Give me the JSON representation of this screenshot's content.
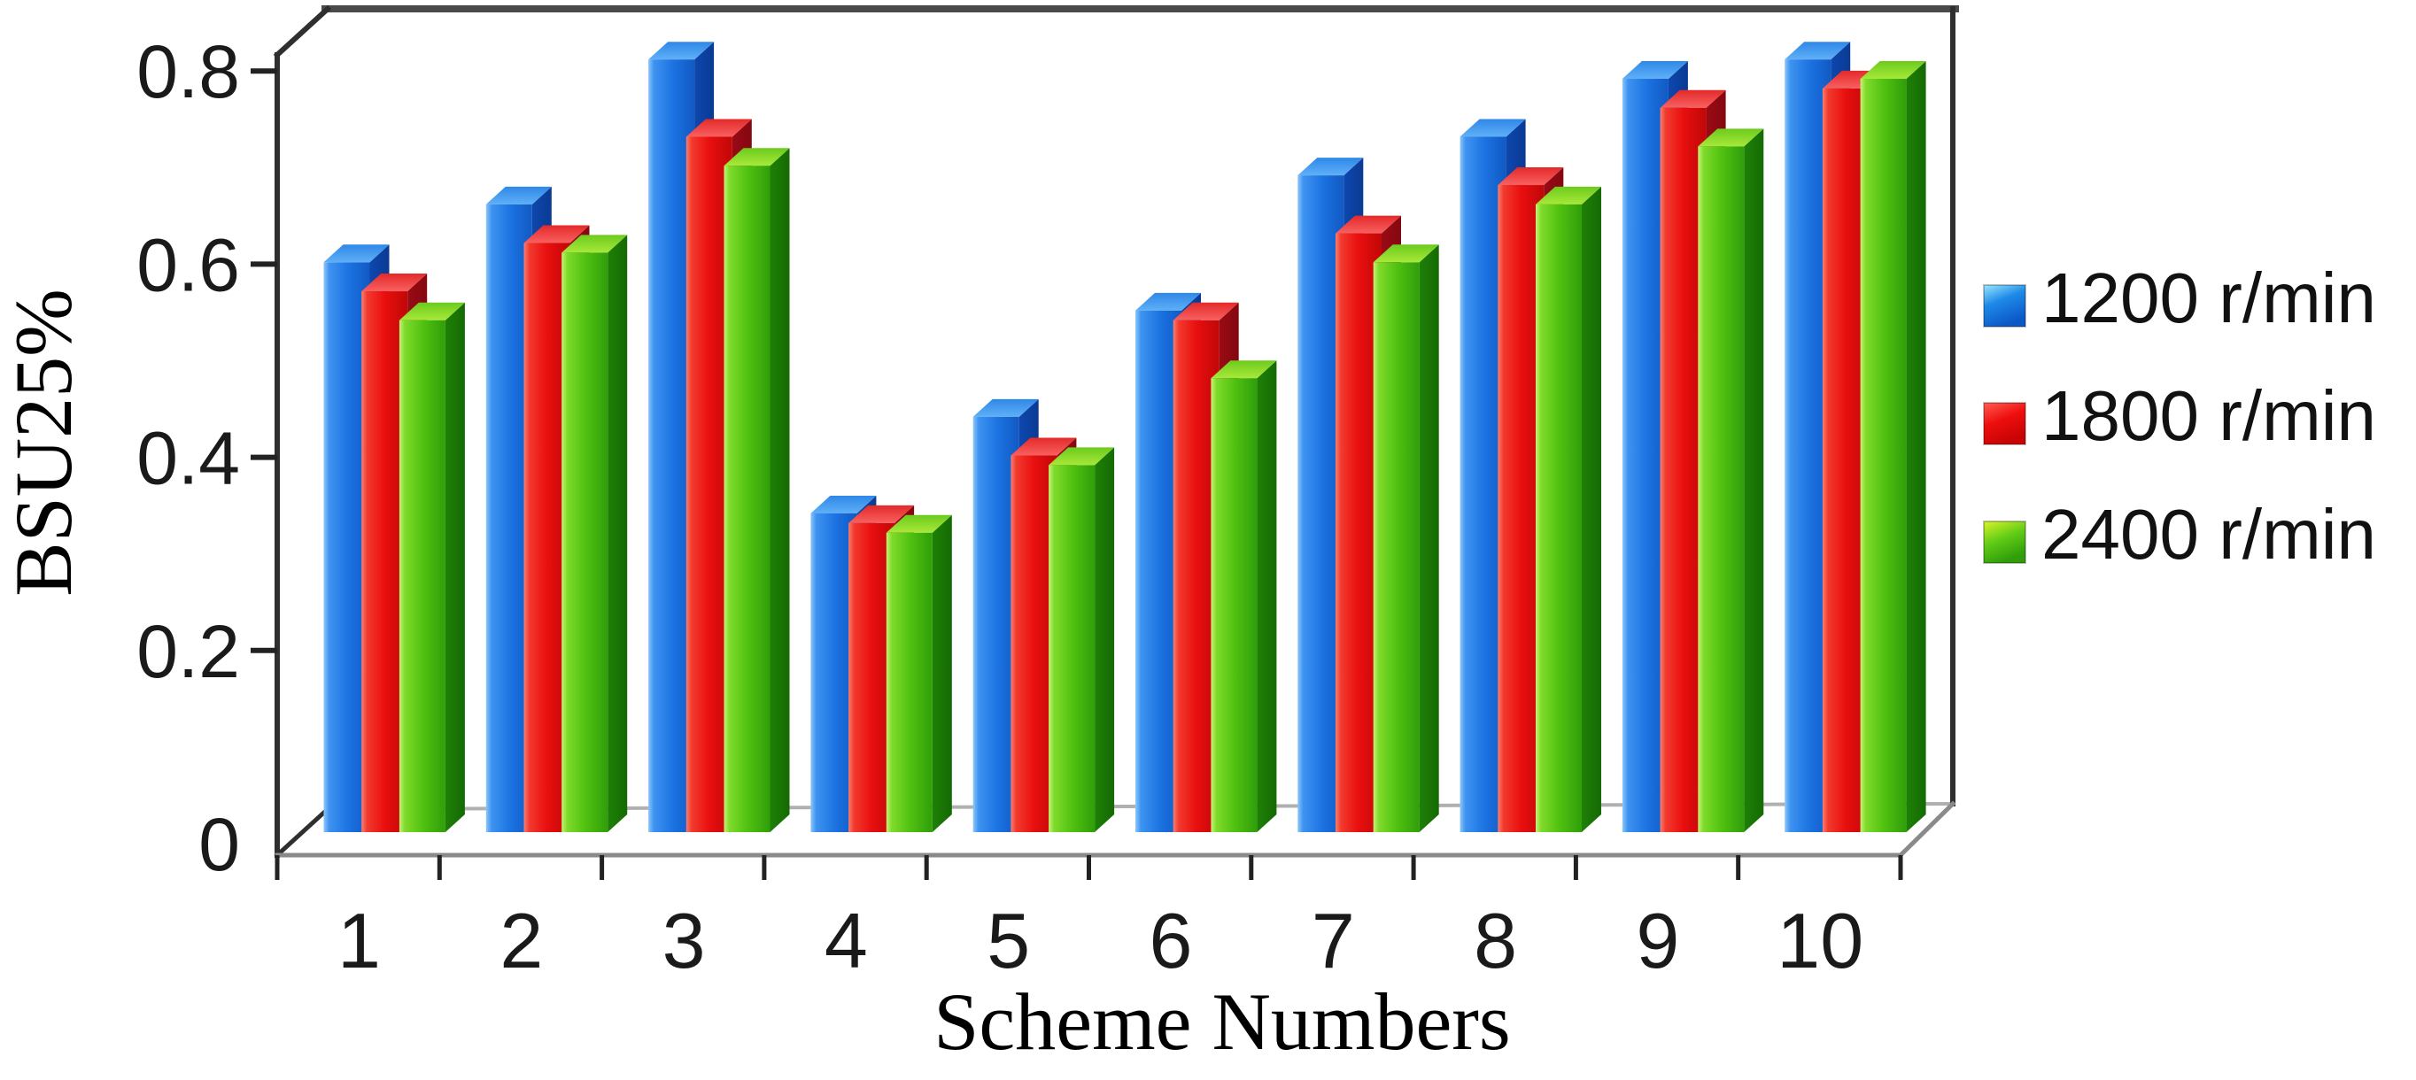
{
  "figure": {
    "background": "#ffffff",
    "line_color": "#2f2f2f",
    "floor_edge_color": "#8a8a8a"
  },
  "chart_data": {
    "type": "bar",
    "projection": "3d-clustered-column",
    "title": "",
    "xlabel": "Scheme  Numbers",
    "ylabel": "BSU25%",
    "categories": [
      "1",
      "2",
      "3",
      "4",
      "5",
      "6",
      "7",
      "8",
      "9",
      "10"
    ],
    "y_ticks": [
      "0",
      "0.2",
      "0.4",
      "0.6",
      "0.8"
    ],
    "y_tick_values": [
      0,
      0.2,
      0.4,
      0.6,
      0.8
    ],
    "ylim": [
      0,
      0.8
    ],
    "grid": false,
    "legend_position": "right",
    "series": [
      {
        "name": "1200 r/min",
        "color": "#1B72E1",
        "values": [
          0.59,
          0.65,
          0.8,
          0.33,
          0.43,
          0.54,
          0.68,
          0.72,
          0.78,
          0.8
        ]
      },
      {
        "name": "1800 r/min",
        "color": "#E90F0F",
        "values": [
          0.56,
          0.61,
          0.72,
          0.32,
          0.39,
          0.53,
          0.62,
          0.67,
          0.75,
          0.77
        ]
      },
      {
        "name": "2400 r/min",
        "color": "#52C211",
        "values": [
          0.53,
          0.6,
          0.69,
          0.31,
          0.38,
          0.47,
          0.59,
          0.65,
          0.71,
          0.78
        ]
      }
    ]
  }
}
